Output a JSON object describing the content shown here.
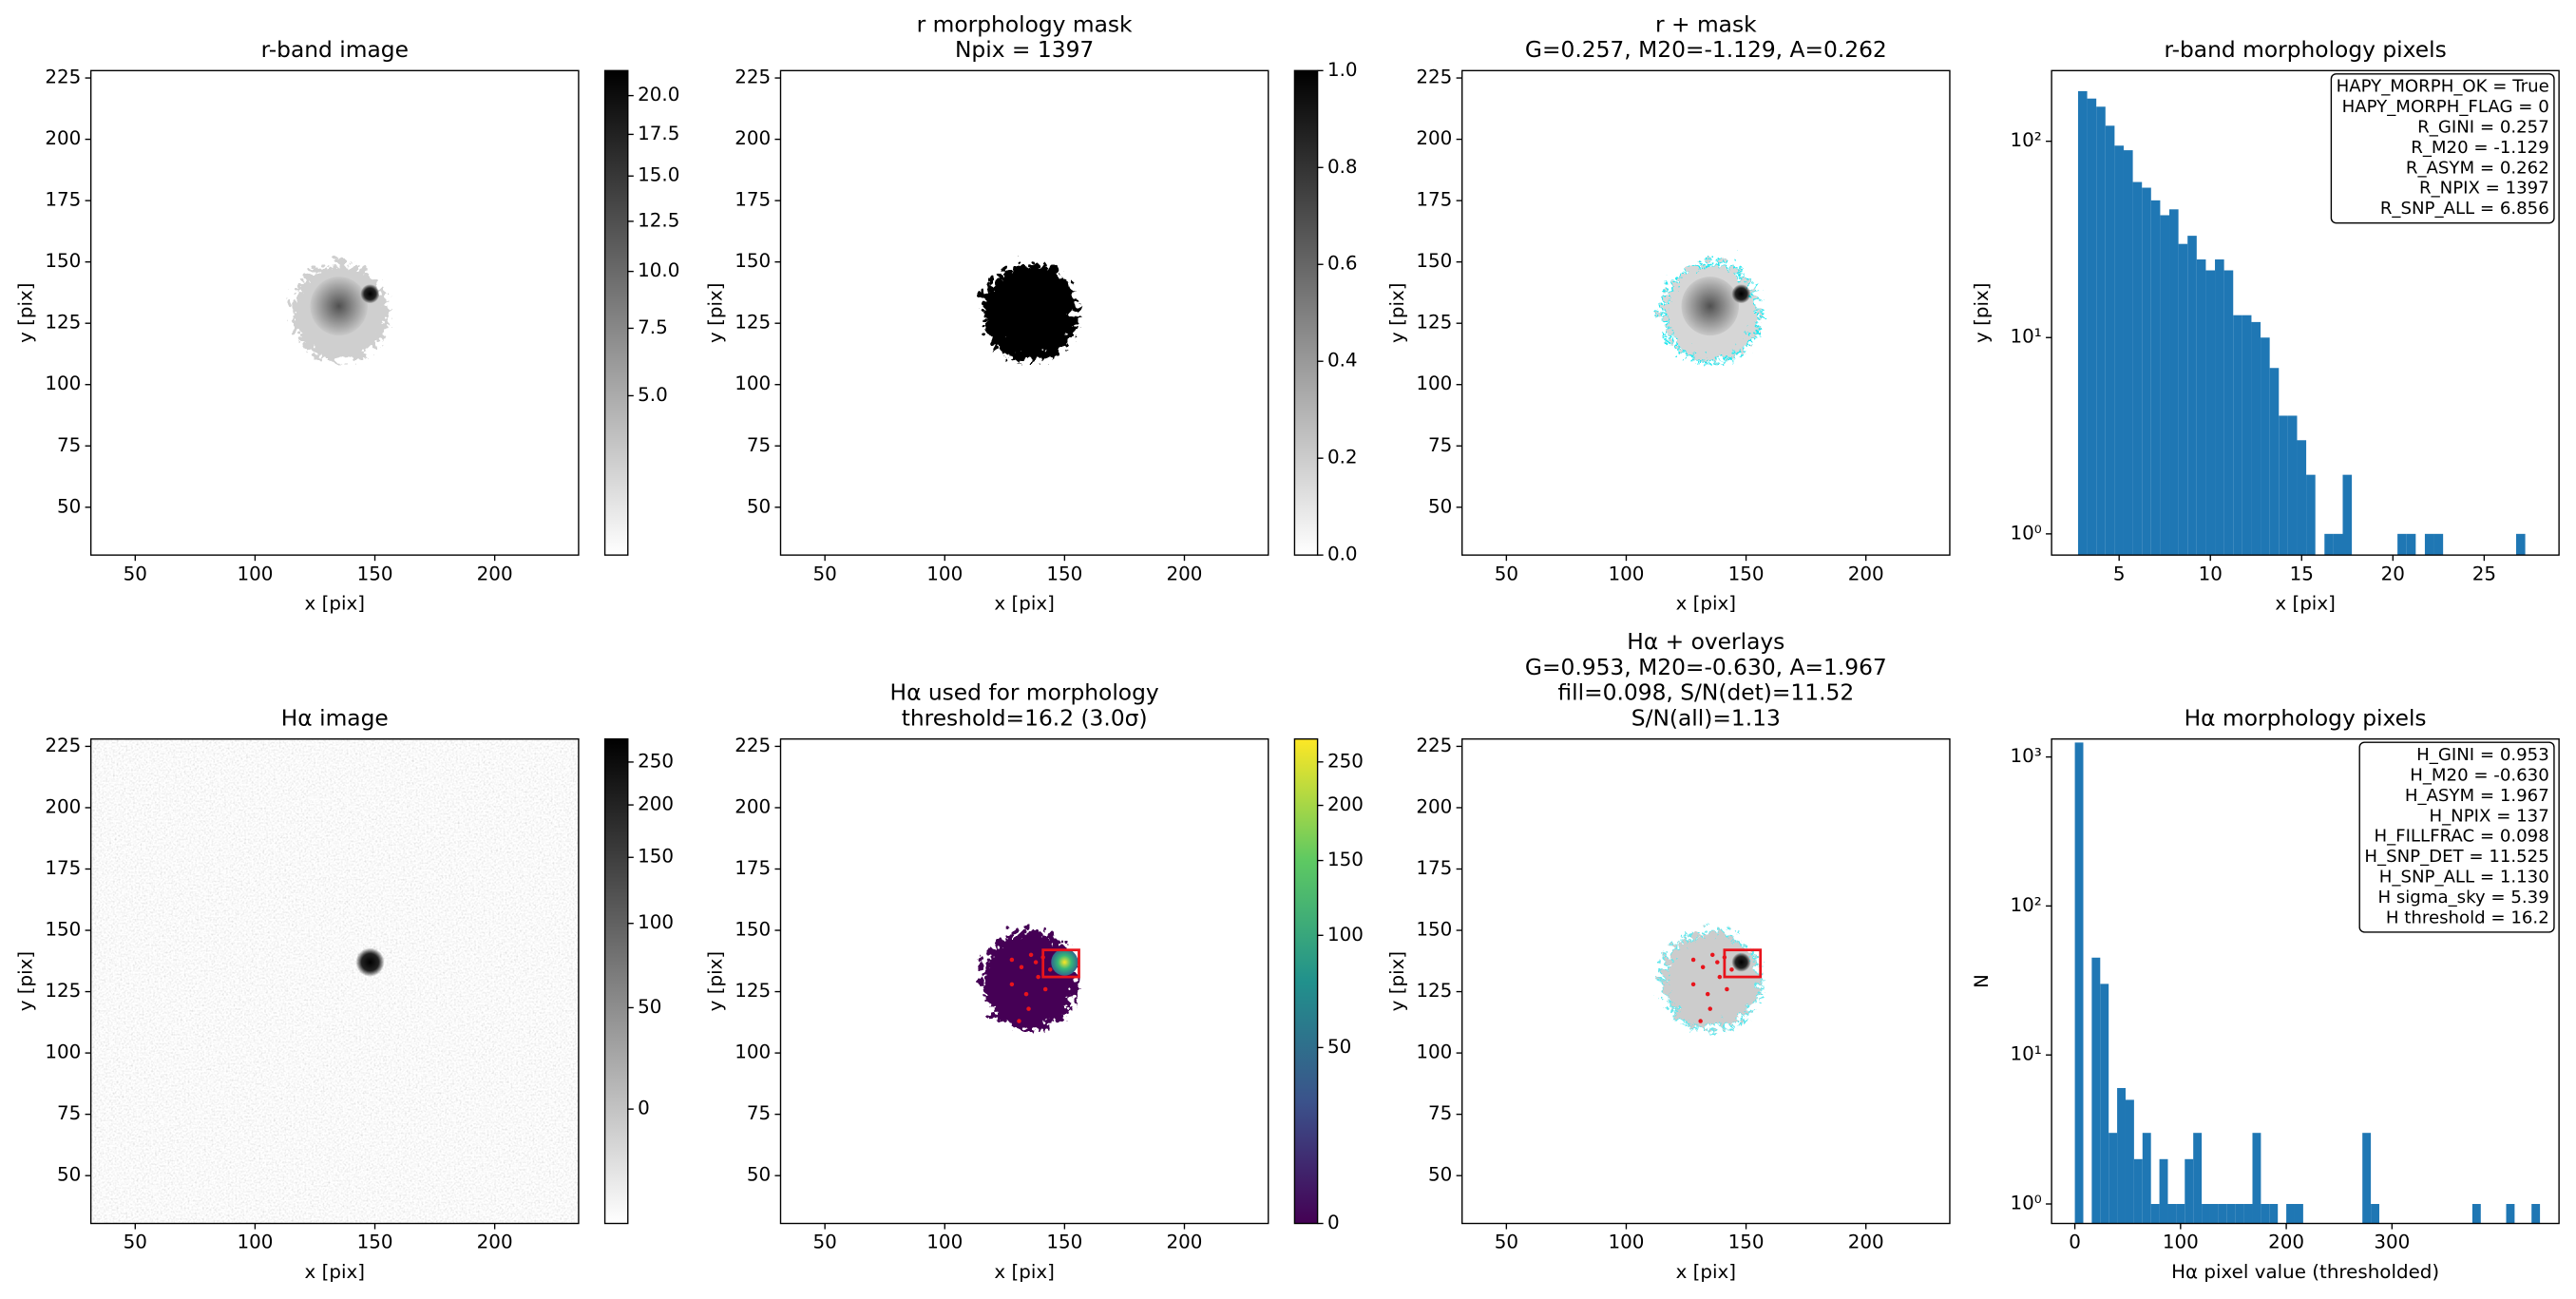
{
  "chart_data": [
    {
      "type": "image",
      "title": "r-band image",
      "xlabel": "x [pix]",
      "ylabel": "y [pix]",
      "xlim": [
        31.5,
        235
      ],
      "ylim": [
        30.5,
        228
      ],
      "xticks": [
        50,
        100,
        150,
        200
      ],
      "yticks": [
        50,
        75,
        100,
        125,
        150,
        175,
        200,
        225
      ],
      "colorbar": {
        "cmap": "gray_r",
        "scale": "sqrt",
        "lim": [
          1.1,
          21.7
        ],
        "ticks": [
          {
            "value": 5,
            "label": "5.0"
          },
          {
            "value": 7.5,
            "label": "7.5"
          },
          {
            "value": 10,
            "label": "10.0"
          },
          {
            "value": 12.5,
            "label": "12.5"
          },
          {
            "value": 15,
            "label": "15.0"
          },
          {
            "value": 17.5,
            "label": "17.5"
          },
          {
            "value": 20,
            "label": "20.0"
          }
        ]
      }
    },
    {
      "type": "image",
      "title": [
        "r morphology mask",
        "Npix = 1397"
      ],
      "xlabel": "x [pix]",
      "ylabel": "y [pix]",
      "xlim": [
        31.5,
        235
      ],
      "ylim": [
        30.5,
        228
      ],
      "xticks": [
        50,
        100,
        150,
        200
      ],
      "yticks": [
        50,
        75,
        100,
        125,
        150,
        175,
        200,
        225
      ],
      "colorbar": {
        "cmap": "gray_r",
        "scale": "linear",
        "lim": [
          0,
          1
        ],
        "ticks": [
          {
            "value": 0,
            "label": "0.0"
          },
          {
            "value": 0.2,
            "label": "0.2"
          },
          {
            "value": 0.4,
            "label": "0.4"
          },
          {
            "value": 0.6,
            "label": "0.6"
          },
          {
            "value": 0.8,
            "label": "0.8"
          },
          {
            "value": 1,
            "label": "1.0"
          }
        ]
      }
    },
    {
      "type": "image",
      "title": [
        "r + mask",
        "G=0.257, M20=-1.129, A=0.262"
      ],
      "xlabel": "x [pix]",
      "ylabel": "y [pix]",
      "xlim": [
        31.5,
        235
      ],
      "ylim": [
        30.5,
        228
      ],
      "xticks": [
        50,
        100,
        150,
        200
      ],
      "yticks": [
        50,
        75,
        100,
        125,
        150,
        175,
        200,
        225
      ]
    },
    {
      "type": "histogram",
      "title": "r-band morphology pixels",
      "xlabel": "x [pix]",
      "ylabel": "y [pix]",
      "color": "#1f77b4",
      "log_y": true,
      "xlim": [
        1.3,
        29.1
      ],
      "ylim": [
        0.78,
        229
      ],
      "xticks": [
        5,
        10,
        15,
        20,
        25
      ],
      "yticks": [
        {
          "value": 1,
          "label": "10⁰"
        },
        {
          "value": 10,
          "label": "10¹"
        },
        {
          "value": 100,
          "label": "10²"
        }
      ],
      "bins": [
        2.75,
        3.25,
        3.75,
        4.25,
        4.75,
        5.25,
        5.75,
        6.25,
        6.75,
        7.25,
        7.75,
        8.25,
        8.75,
        9.25,
        9.75,
        10.25,
        10.75,
        11.25,
        11.75,
        12.25,
        12.75,
        13.25,
        13.75,
        14.25,
        14.75,
        15.25,
        15.75,
        16.25,
        16.75,
        17.25,
        17.75,
        18.25,
        18.75,
        19.25,
        19.75,
        20.25,
        20.75,
        21.25,
        21.75,
        22.25,
        22.75,
        23.25,
        23.75,
        24.25,
        24.75,
        25.25,
        25.75,
        26.25,
        26.75,
        27.25
      ],
      "values": [
        180,
        165,
        150,
        120,
        95,
        90,
        62,
        58,
        50,
        42,
        45,
        30,
        33,
        25,
        22,
        25,
        22,
        13,
        13,
        12,
        10,
        7,
        4,
        4,
        3,
        2,
        0,
        1,
        1,
        2,
        0,
        0,
        0,
        0,
        0,
        1,
        1,
        0,
        1,
        1,
        0,
        0,
        0,
        0,
        0,
        0,
        0,
        0,
        1
      ],
      "annotation": [
        "HAPY_MORPH_OK = True",
        "HAPY_MORPH_FLAG = 0",
        "R_GINI = 0.257",
        "R_M20 = -1.129",
        "R_ASYM = 0.262",
        "R_NPIX = 1397",
        "R_SNP_ALL = 6.856"
      ]
    },
    {
      "type": "image",
      "title": "Hα image",
      "xlabel": "x [pix]",
      "ylabel": "y [pix]",
      "xlim": [
        31.5,
        235
      ],
      "ylim": [
        30.5,
        228
      ],
      "xticks": [
        50,
        100,
        150,
        200
      ],
      "yticks": [
        50,
        75,
        100,
        125,
        150,
        175,
        200,
        225
      ],
      "colorbar": {
        "cmap": "gray_r",
        "scale": "asinh",
        "softening": 100,
        "lim": [
          -57,
          281
        ],
        "ticks": [
          0,
          50,
          100,
          150,
          200,
          250
        ]
      }
    },
    {
      "type": "image",
      "title": [
        "Hα used for morphology",
        "threshold=16.2 (3.0σ)"
      ],
      "xlabel": "x [pix]",
      "ylabel": "y [pix]",
      "xlim": [
        31.5,
        235
      ],
      "ylim": [
        30.5,
        228
      ],
      "xticks": [
        50,
        100,
        150,
        200
      ],
      "yticks": [
        50,
        75,
        100,
        125,
        150,
        175,
        200,
        225
      ],
      "colorbar": {
        "cmap": "viridis",
        "scale": "asinh",
        "softening": 50,
        "lim": [
          0,
          281
        ],
        "ticks": [
          0,
          50,
          100,
          150,
          200,
          250
        ]
      }
    },
    {
      "type": "image",
      "title": [
        "Hα + overlays",
        "G=0.953, M20=-0.630, A=1.967",
        "fill=0.098, S/N(det)=11.52",
        "S/N(all)=1.13"
      ],
      "xlabel": "x [pix]",
      "ylabel": "y [pix]",
      "xlim": [
        31.5,
        235
      ],
      "ylim": [
        30.5,
        228
      ],
      "xticks": [
        50,
        100,
        150,
        200
      ],
      "yticks": [
        50,
        75,
        100,
        125,
        150,
        175,
        200,
        225
      ]
    },
    {
      "type": "histogram",
      "title": "Hα morphology pixels",
      "xlabel": "Hα pixel value (thresholded)",
      "ylabel": "N",
      "color": "#1f77b4",
      "log_y": true,
      "xlim": [
        -22,
        458
      ],
      "ylim": [
        0.74,
        1320
      ],
      "xticks": [
        0,
        100,
        200,
        300
      ],
      "yticks": [
        {
          "value": 1,
          "label": "10⁰"
        },
        {
          "value": 10,
          "label": "10¹"
        },
        {
          "value": 100,
          "label": "10²"
        },
        {
          "value": 1000,
          "label": "10³"
        }
      ],
      "bins": [
        0,
        8,
        16,
        24,
        32,
        40,
        48,
        56,
        64,
        72,
        80,
        88,
        96,
        104,
        112,
        120,
        128,
        136,
        144,
        152,
        160,
        168,
        176,
        184,
        192,
        200,
        208,
        216,
        224,
        232,
        240,
        248,
        256,
        264,
        272,
        280,
        288,
        296,
        304,
        312,
        320,
        328,
        336,
        344,
        352,
        360,
        368,
        376,
        384,
        392,
        400,
        408,
        416,
        424,
        432,
        440
      ],
      "values": [
        1250,
        0,
        45,
        30,
        3,
        6,
        5,
        2,
        3,
        1,
        2,
        1,
        1,
        2,
        3,
        1,
        1,
        1,
        1,
        1,
        1,
        3,
        1,
        1,
        0,
        1,
        1,
        0,
        0,
        0,
        0,
        0,
        0,
        0,
        3,
        1,
        0,
        0,
        0,
        0,
        0,
        0,
        0,
        0,
        0,
        0,
        0,
        1,
        0,
        0,
        0,
        1,
        0,
        0,
        1
      ],
      "annotation": [
        "H_GINI = 0.953",
        "H_M20 = -0.630",
        "H_ASYM = 1.967",
        "H_NPIX = 137",
        "H_FILLFRAC = 0.098",
        "H_SNP_DET = 11.525",
        "H_SNP_ALL = 1.130",
        "H sigma_sky = 5.39",
        "H threshold = 16.2"
      ]
    }
  ]
}
